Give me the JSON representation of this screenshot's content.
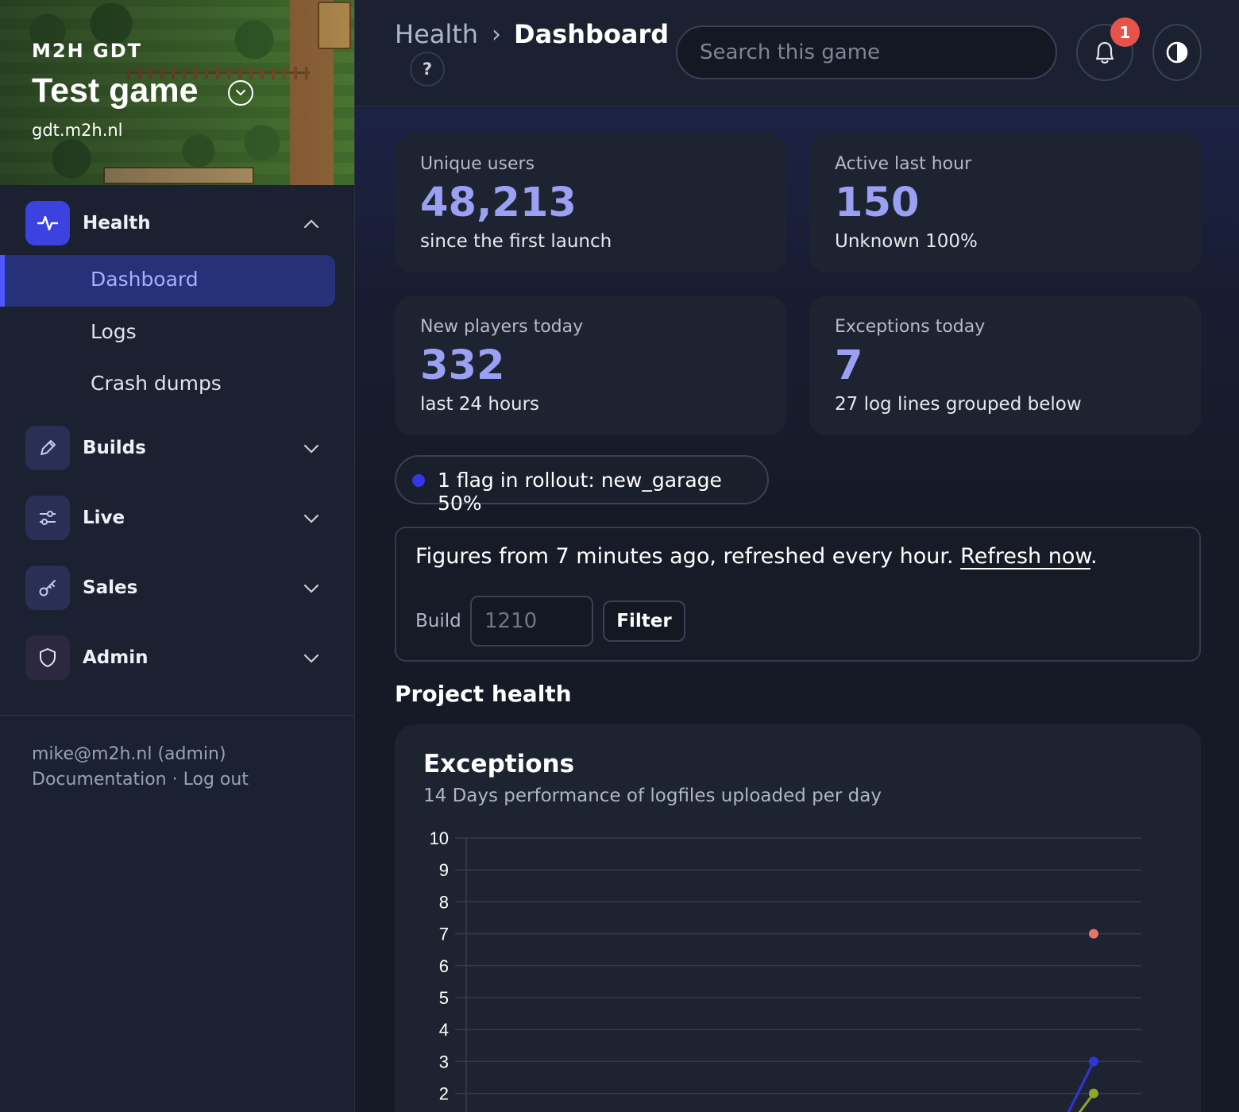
{
  "sidebar": {
    "org": "M2H GDT",
    "game_title": "Test game",
    "game_domain": "gdt.m2h.nl",
    "groups": [
      {
        "label": "Health",
        "icon": "activity-icon",
        "expanded": true,
        "items": [
          {
            "label": "Dashboard",
            "active": true
          },
          {
            "label": "Logs"
          },
          {
            "label": "Crash dumps"
          }
        ]
      },
      {
        "label": "Builds",
        "icon": "pencil-icon",
        "expanded": false
      },
      {
        "label": "Live",
        "icon": "sliders-icon",
        "expanded": false
      },
      {
        "label": "Sales",
        "icon": "key-icon",
        "expanded": false
      },
      {
        "label": "Admin",
        "icon": "shield-icon",
        "expanded": false
      }
    ],
    "user": "mike@m2h.nl (admin)",
    "documentation": "Documentation",
    "separator": "·",
    "logout": "Log out"
  },
  "topbar": {
    "breadcrumb_parent": "Health",
    "breadcrumb_sep": "›",
    "breadcrumb_current": "Dashboard",
    "help": "?",
    "search_placeholder": "Search this game",
    "notification_count": "1"
  },
  "stats": [
    {
      "label": "Unique users",
      "value": "48,213",
      "sub": "since the first launch"
    },
    {
      "label": "Active last hour",
      "value": "150",
      "sub": "Unknown 100%"
    },
    {
      "label": "New players today",
      "value": "332",
      "sub": "last 24 hours"
    },
    {
      "label": "Exceptions today",
      "value": "7",
      "sub": "27 log lines grouped below"
    }
  ],
  "flag": {
    "text": "1 flag in rollout: new_garage 50%",
    "dot_color": "#3238e6"
  },
  "refresh": {
    "text": "Figures from 7 minutes ago, refreshed every hour.",
    "link": "Refresh now",
    "period": ".",
    "build_label": "Build",
    "build_placeholder": "1210",
    "filter_label": "Filter"
  },
  "section_title": "Project health",
  "colors": {
    "accent": "#3b42e0",
    "stat_value": "#9aa0f3",
    "badge": "#e5534b"
  },
  "chart_data": {
    "type": "line",
    "title": "Exceptions",
    "subtitle": "14 Days performance of logfiles uploaded per day",
    "y_ticks": [
      "10",
      "9",
      "8",
      "7",
      "6",
      "5",
      "4",
      "3",
      "2"
    ],
    "ylim": [
      2,
      10
    ],
    "grid": true,
    "x_count": 14,
    "series": [
      {
        "color": "#e8736a",
        "values": [
          null,
          null,
          null,
          null,
          null,
          null,
          null,
          null,
          null,
          null,
          null,
          null,
          null,
          7
        ]
      },
      {
        "color": "#2f36d6",
        "values": [
          null,
          null,
          null,
          null,
          null,
          null,
          null,
          null,
          null,
          null,
          null,
          null,
          0,
          3
        ]
      },
      {
        "color": "#8fa82a",
        "values": [
          null,
          null,
          null,
          null,
          null,
          null,
          null,
          null,
          null,
          null,
          null,
          null,
          0,
          2
        ]
      }
    ]
  }
}
